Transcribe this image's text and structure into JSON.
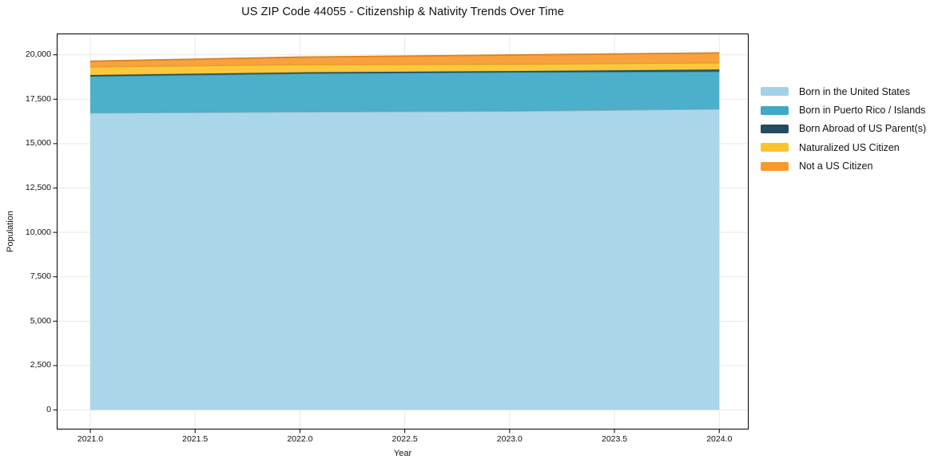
{
  "chart_data": {
    "type": "area",
    "stacked": true,
    "title": "US ZIP Code 44055 - Citizenship & Nativity Trends Over Time",
    "xlabel": "Year",
    "ylabel": "Population",
    "x": [
      2021,
      2022,
      2023,
      2024
    ],
    "series": [
      {
        "name": "Born in the United States",
        "color": "#a3d2e8",
        "values": [
          16730,
          16790,
          16830,
          16950
        ]
      },
      {
        "name": "Born in Puerto Rico / Islands",
        "color": "#3ea9c5",
        "values": [
          2060,
          2160,
          2190,
          2110
        ]
      },
      {
        "name": "Born Abroad of US Parent(s)",
        "color": "#254b5e",
        "values": [
          70,
          60,
          60,
          110
        ]
      },
      {
        "name": "Naturalized US Citizen",
        "color": "#fcc32d",
        "values": [
          460,
          440,
          390,
          380
        ]
      },
      {
        "name": "Not a US Citizen",
        "color": "#f8992c",
        "values": [
          320,
          420,
          520,
          560
        ]
      }
    ],
    "x_ticks": {
      "values": [
        2021,
        2021.5,
        2022,
        2022.5,
        2023,
        2023.5,
        2024
      ],
      "labels": [
        "2021.0",
        "2021.5",
        "2022.0",
        "2022.5",
        "2023.0",
        "2023.5",
        "2024.0"
      ]
    },
    "y_ticks": {
      "values": [
        0,
        2500,
        5000,
        7500,
        10000,
        12500,
        15000,
        17500,
        20000
      ],
      "labels": [
        "0",
        "2,500",
        "5,000",
        "7,500",
        "10,000",
        "12,500",
        "15,000",
        "17,500",
        "20,000"
      ]
    },
    "xlim": [
      2020.84,
      2024.14
    ],
    "ylim": [
      -1100,
      21200
    ],
    "grid": true,
    "legend_position": "right-outside",
    "colors": {
      "grid": "#e9e9e9",
      "spine": "#000000",
      "text": "#111111"
    }
  }
}
